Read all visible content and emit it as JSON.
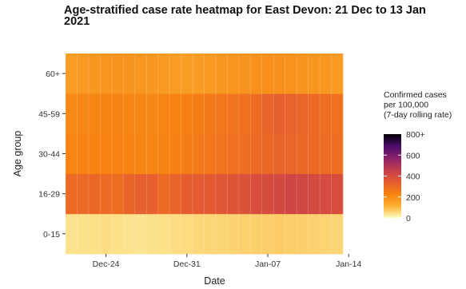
{
  "chart_data": {
    "type": "heatmap",
    "title": "Age-stratified case rate heatmap for East Devon: 21 Dec to 13 Jan 2021",
    "xlabel": "Date",
    "ylabel": "Age group",
    "x_start": "2020-12-21",
    "x_end": "2021-01-13",
    "x_ticks": [
      "Dec-24",
      "Dec-31",
      "Jan-07",
      "Jan-14"
    ],
    "y_categories": [
      "0-15",
      "16-29",
      "30-44",
      "45-59",
      "60+"
    ],
    "legend": {
      "title_lines": [
        "Confirmed cases",
        "per 100,000",
        "(7-day rolling rate)"
      ],
      "min": 0,
      "max": 800,
      "ticks": [
        0,
        200,
        400,
        600
      ],
      "top_label": "800+",
      "placement": "right"
    },
    "colors": [
      "#fcfdbf",
      "#fbb032",
      "#f78212",
      "#e55c30",
      "#c43c4e",
      "#8a226a",
      "#4c0c6b",
      "#000004"
    ],
    "values": {
      "60+": [
        165,
        170,
        175,
        180,
        185,
        185,
        180,
        175,
        170,
        165,
        160,
        165,
        170,
        175,
        180,
        185,
        190,
        195,
        195,
        190,
        185,
        180,
        175,
        170
      ],
      "45-59": [
        210,
        215,
        220,
        225,
        225,
        220,
        215,
        215,
        220,
        225,
        235,
        245,
        255,
        265,
        270,
        280,
        295,
        320,
        330,
        325,
        315,
        300,
        290,
        280
      ],
      "30-44": [
        220,
        225,
        225,
        230,
        230,
        225,
        220,
        220,
        225,
        235,
        245,
        255,
        265,
        275,
        280,
        285,
        300,
        310,
        320,
        315,
        310,
        300,
        295,
        285
      ],
      "16-29": [
        300,
        305,
        310,
        300,
        290,
        320,
        335,
        330,
        300,
        320,
        340,
        345,
        350,
        360,
        370,
        380,
        390,
        400,
        410,
        420,
        415,
        405,
        400,
        395
      ],
      "0-15": [
        40,
        42,
        45,
        48,
        45,
        40,
        38,
        42,
        45,
        48,
        50,
        55,
        58,
        60,
        62,
        65,
        68,
        70,
        72,
        70,
        68,
        65,
        62,
        60
      ]
    }
  }
}
